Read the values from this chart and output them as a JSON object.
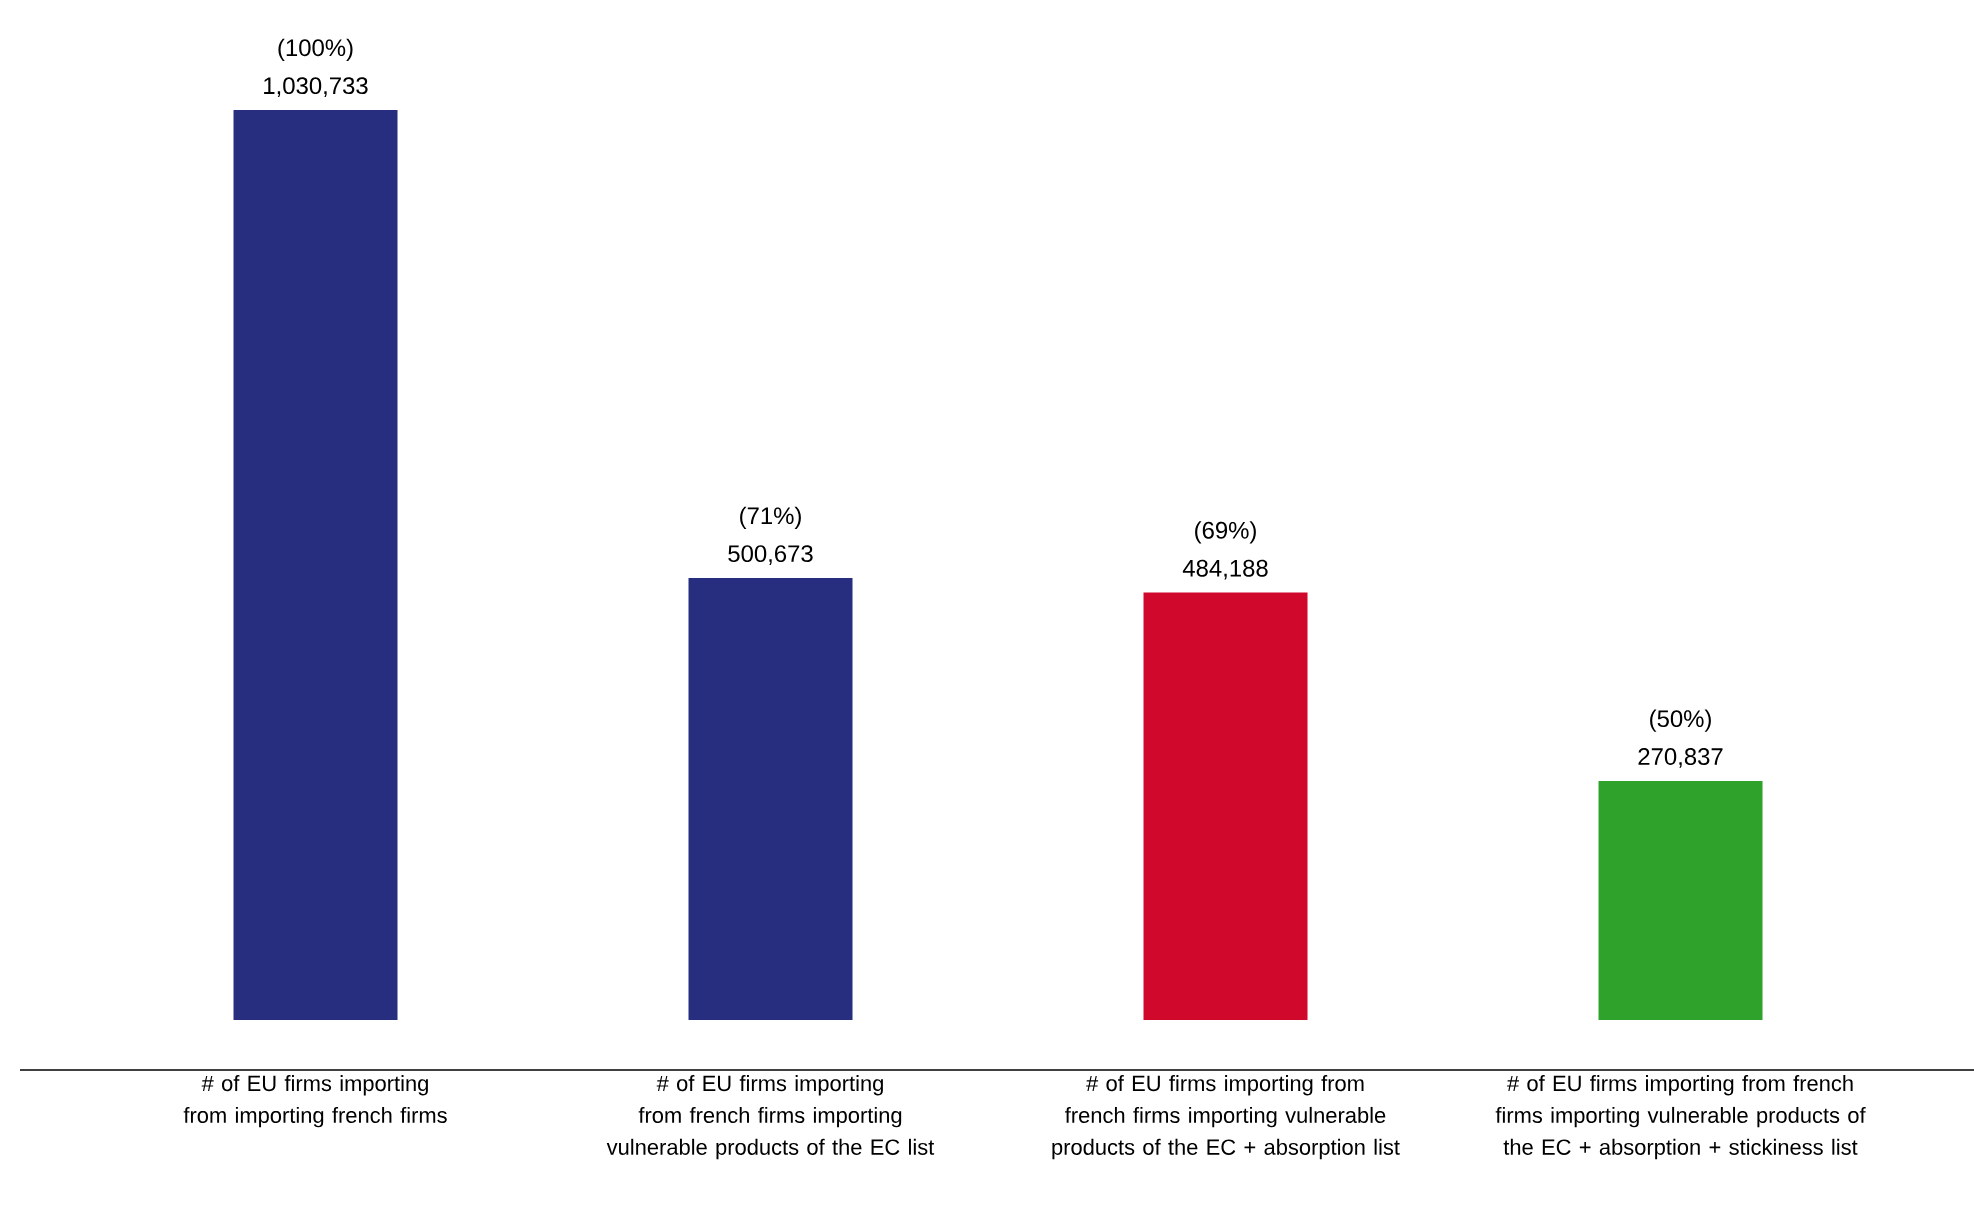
{
  "chart_data": {
    "type": "bar",
    "categories": [
      "# of EU firms importing from importing french firms",
      "# of EU firms importing from french firms importing vulnerable products of the EC list",
      "# of EU firms importing from french firms importing vulnerable products of the EC + absorption list",
      "# of EU firms importing from french firms importing vulnerable products of the EC + absorption + stickiness list"
    ],
    "values": [
      1030733,
      500673,
      484188,
      270837
    ],
    "colors": [
      "#282e7f",
      "#282e7f",
      "#d0082c",
      "#2ea22b"
    ],
    "value_labels": [
      "1,030,733",
      "500,673",
      "484,188",
      "270,837"
    ],
    "annotations": [
      {
        "text": "(100%)",
        "x": "# of EU firms importing from importing french firms",
        "y": 1030733
      },
      {
        "text": "(71%)",
        "x": "# of EU firms importing from french firms importing vulnerable products of the EC list",
        "y": 500673
      },
      {
        "text": "(69%)",
        "x": "# of EU firms importing from french firms importing vulnerable products of the EC + absorption list",
        "y": 484188
      },
      {
        "text": "(50%)",
        "x": "# of EU firms importing from french firms importing vulnerable products of the EC + absorption + stickiness list",
        "y": 270837
      }
    ],
    "ylim": [
      0,
      1030733
    ]
  }
}
